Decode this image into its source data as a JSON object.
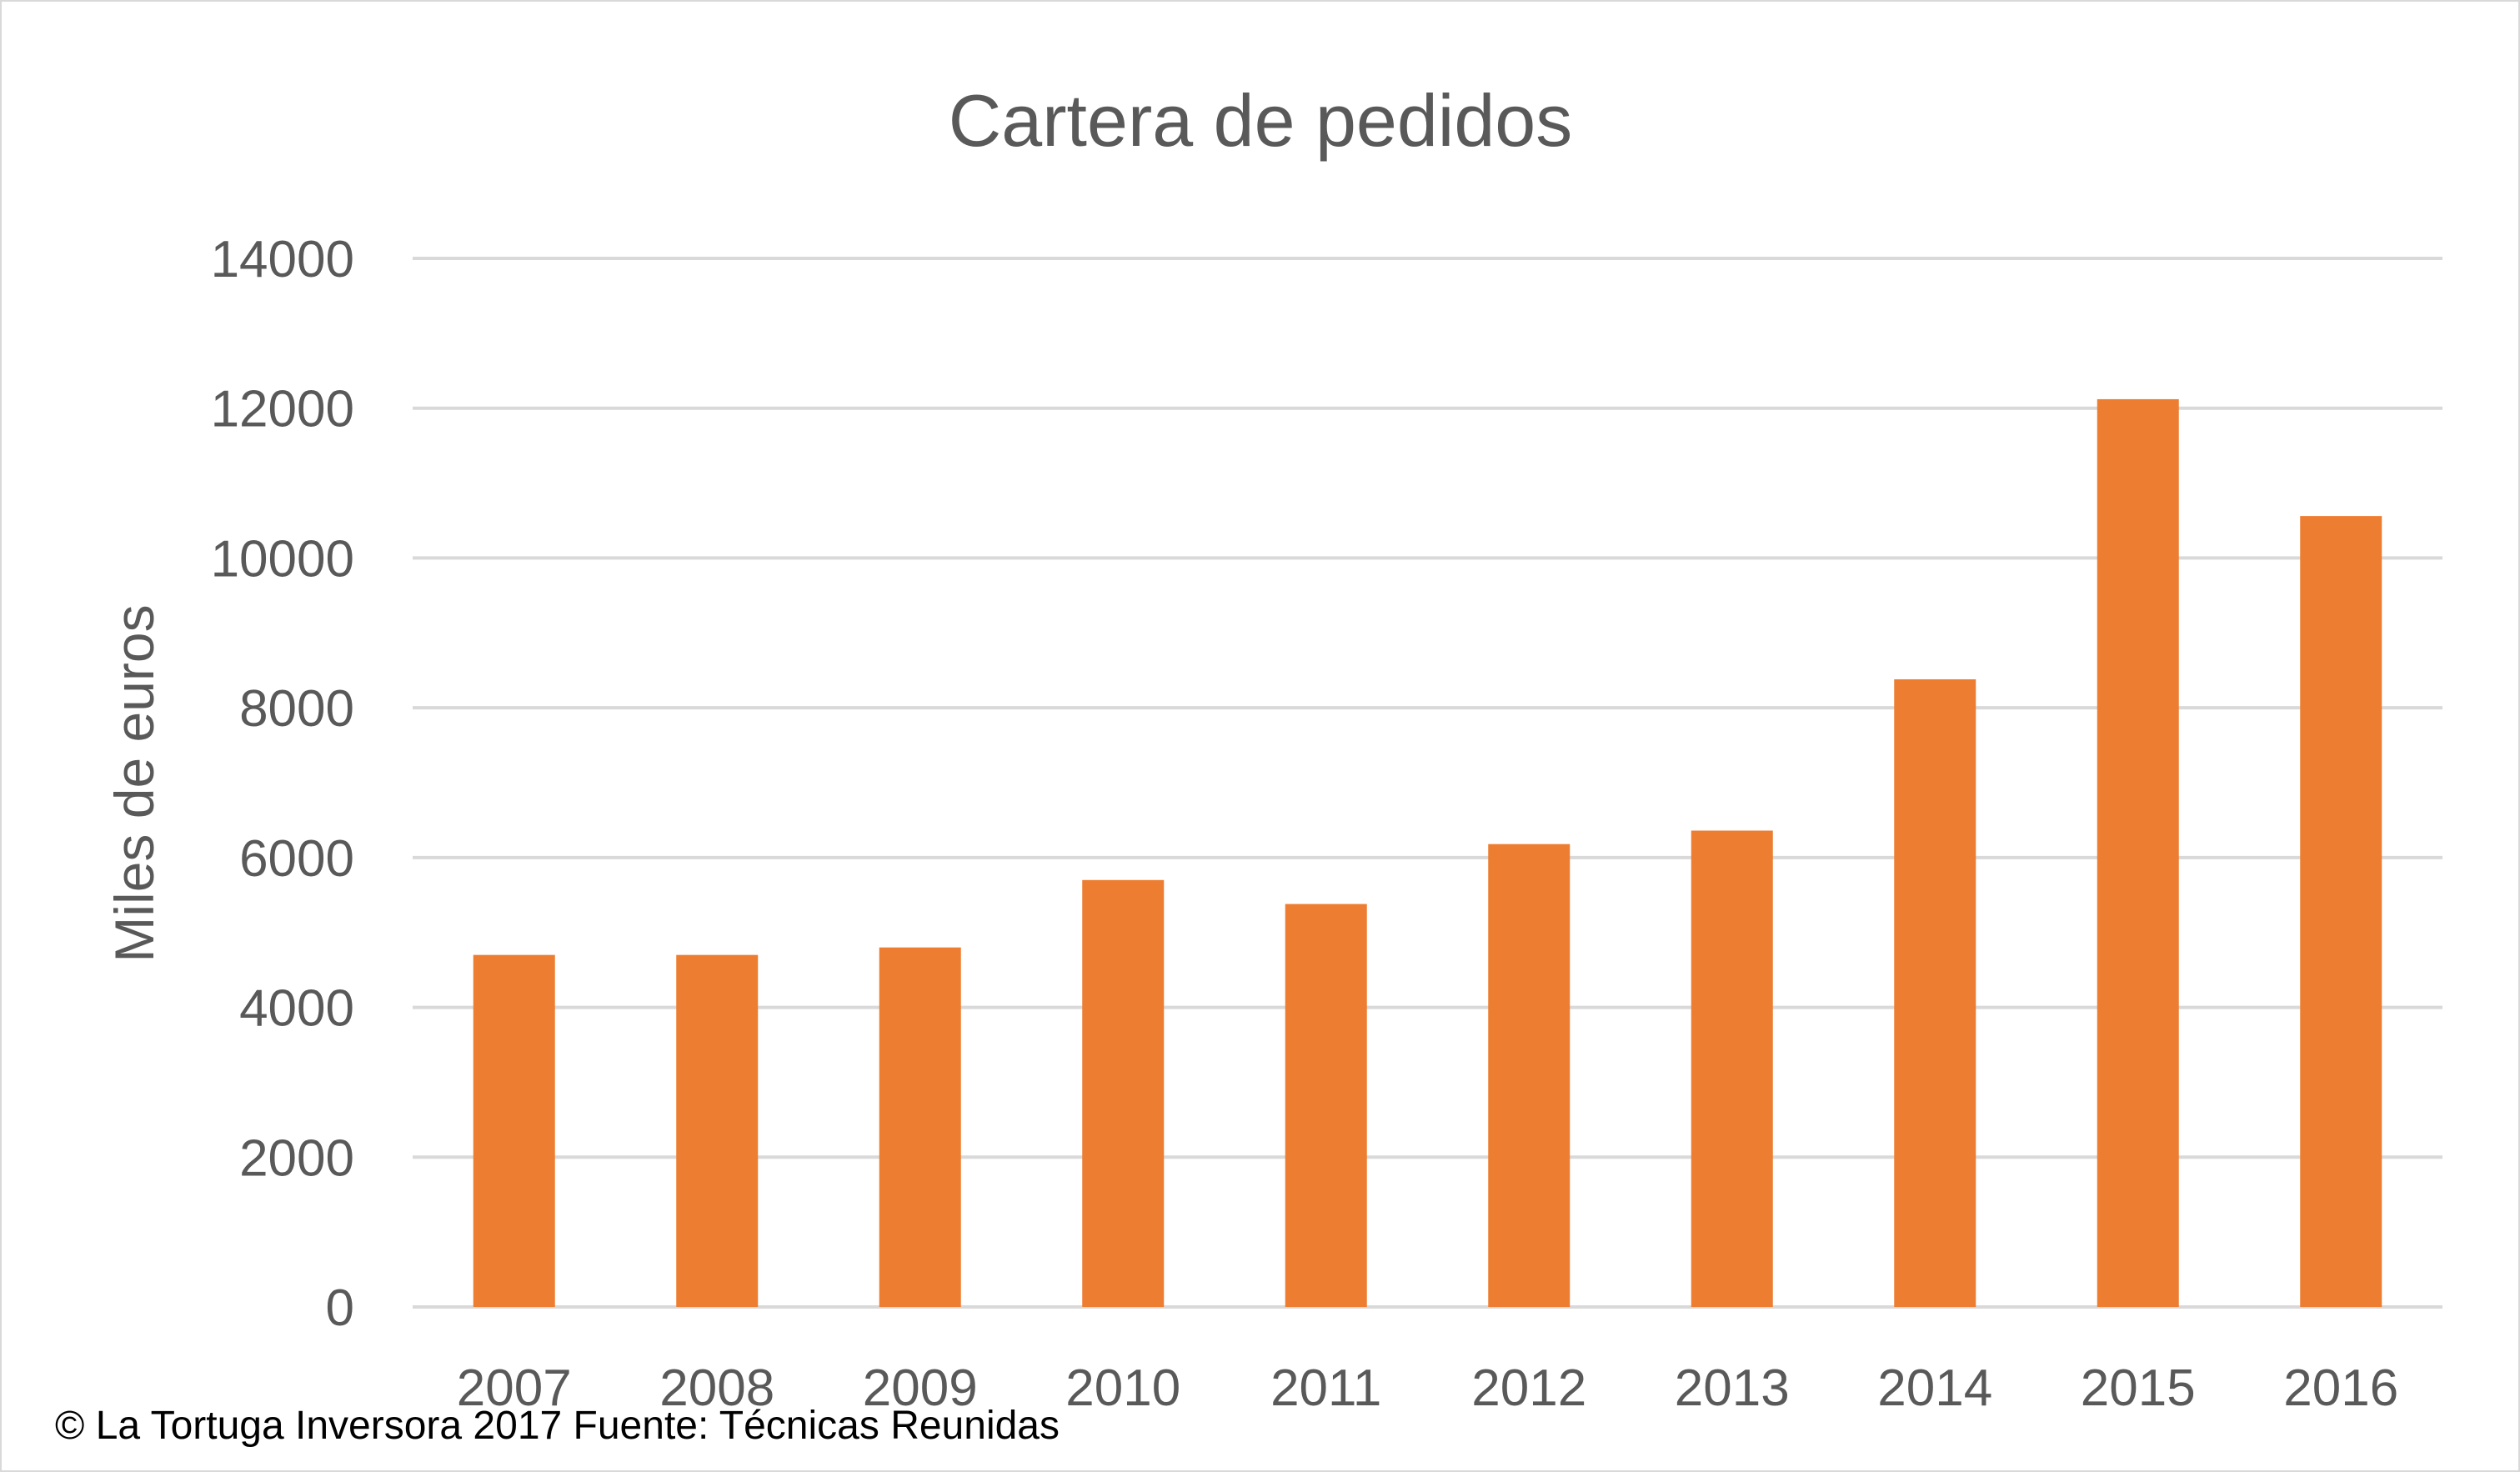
{
  "chart_data": {
    "type": "bar",
    "title": "Cartera de pedidos",
    "xlabel": "",
    "ylabel": "Miles de euros",
    "categories": [
      "2007",
      "2008",
      "2009",
      "2010",
      "2011",
      "2012",
      "2013",
      "2014",
      "2015",
      "2016"
    ],
    "series": [
      {
        "values": [
          4700,
          4700,
          4800,
          5700,
          5380,
          6180,
          6360,
          8380,
          12120,
          10560
        ]
      }
    ],
    "ylim": [
      0,
      14000
    ],
    "yticks": [
      "0",
      "2000",
      "4000",
      "6000",
      "8000",
      "10000",
      "12000",
      "14000"
    ],
    "grid": true,
    "legend": "none",
    "colors": {
      "bar": "#ed7d31",
      "grid": "#d9d9d9",
      "text": "#595959"
    }
  },
  "footer": {
    "credit": "© La Tortuga Inversora 2017 Fuente: Técnicas Reunidas"
  }
}
